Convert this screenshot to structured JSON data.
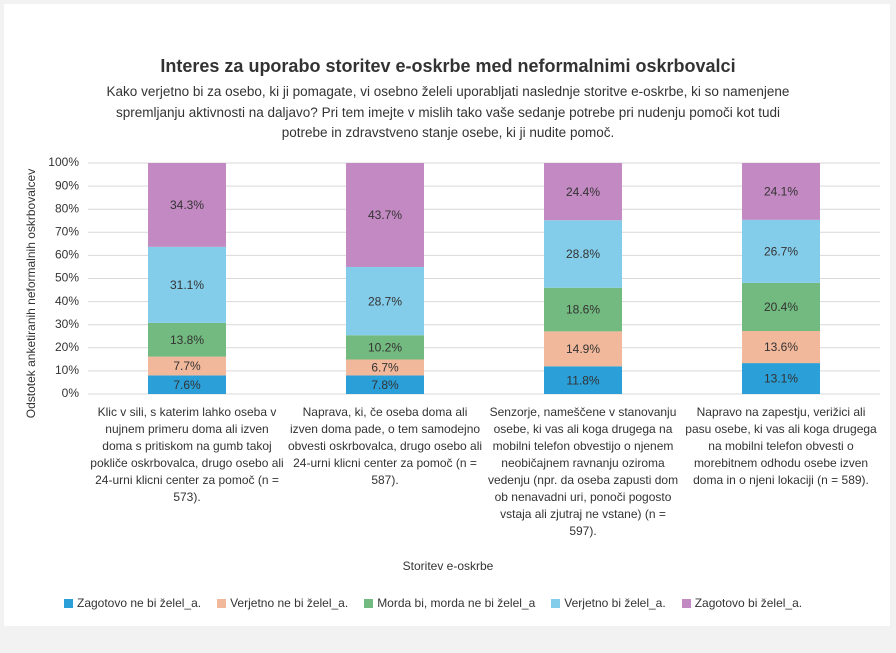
{
  "chart_data": {
    "type": "bar",
    "stacked": "percent",
    "title": "Interes za uporabo storitev e-oskrbe med neformalnimi oskrbovalci",
    "subtitle": "Kako verjetno bi za osebo, ki ji pomagate, vi osebno želeli uporabljati naslednje storitve e-oskrbe, ki so namenjene spremljanju aktivnosti na daljavo? Pri tem imejte v mislih tako vaše sedanje potrebe pri nudenju pomoči kot tudi potrebe in zdravstveno stanje osebe, ki ji nudite pomoč.",
    "xlabel": "Storitev e-oskrbe",
    "ylabel": "Odstotek anketiranih neformalnih oskrbovalcev",
    "categories": [
      "Klic v sili, s katerim lahko oseba v nujnem primeru doma ali izven doma s pritiskom na gumb takoj pokliče oskrbovalca, drugo osebo ali 24-urni klicni center za pomoč (n = 573).",
      "Naprava, ki, če oseba doma ali izven doma pade, o tem samodejno obvesti oskrbovalca, drugo osebo ali 24-urni klicni center za pomoč (n = 587).",
      "Senzorje, nameščene v stanovanju osebe, ki vas ali koga drugega na mobilni telefon obvestijo o njenem neobičajnem ravnanju oziroma vedenju (npr. da oseba zapusti dom ob nenavadni uri, ponoči pogosto vstaja ali zjutraj ne vstane) (n = 597).",
      "Napravo na zapestju, verižici ali pasu osebe, ki vas ali koga drugega na mobilni telefon obvesti o morebitnem odhodu osebe izven doma in o njeni lokaciji (n = 589)."
    ],
    "series": [
      {
        "name": "Zagotovo ne bi želel_a.",
        "color": "#2a9fd8",
        "values": [
          7.6,
          7.8,
          11.8,
          13.1
        ],
        "value_labels": [
          "7.6%",
          "7.8%",
          "11.8%",
          "13.1%"
        ]
      },
      {
        "name": "Verjetno ne bi želel_a.",
        "color": "#f2b89b",
        "values": [
          7.7,
          6.7,
          14.9,
          13.6
        ],
        "value_labels": [
          "7.7%",
          "6.7%",
          "14.9%",
          "13.6%"
        ]
      },
      {
        "name": "Morda bi, morda ne bi želel_a",
        "color": "#72ba7f",
        "values": [
          13.8,
          10.2,
          18.6,
          20.4
        ],
        "value_labels": [
          "13.8%",
          "10.2%",
          "18.6%",
          "20.4%"
        ]
      },
      {
        "name": "Verjetno bi želel_a.",
        "color": "#84cdea",
        "values": [
          31.1,
          28.7,
          28.8,
          26.7
        ],
        "value_labels": [
          "31.1%",
          "28.7%",
          "28.8%",
          "26.7%"
        ]
      },
      {
        "name": "Zagotovo bi želel_a.",
        "color": "#c289c2",
        "values": [
          34.3,
          43.7,
          24.4,
          24.1
        ],
        "value_labels": [
          "34.3%",
          "43.7%",
          "24.4%",
          "24.1%"
        ]
      }
    ],
    "ylim": [
      0,
      100
    ],
    "yticks": [
      {
        "value": 0,
        "label": "0%"
      },
      {
        "value": 10,
        "label": "10%"
      },
      {
        "value": 20,
        "label": "20%"
      },
      {
        "value": 30,
        "label": "30%"
      },
      {
        "value": 40,
        "label": "40%"
      },
      {
        "value": 50,
        "label": "50%"
      },
      {
        "value": 60,
        "label": "60%"
      },
      {
        "value": 70,
        "label": "70%"
      },
      {
        "value": 80,
        "label": "80%"
      },
      {
        "value": 90,
        "label": "90%"
      },
      {
        "value": 100,
        "label": "100%"
      }
    ],
    "grid": true,
    "legend": "bottom"
  }
}
